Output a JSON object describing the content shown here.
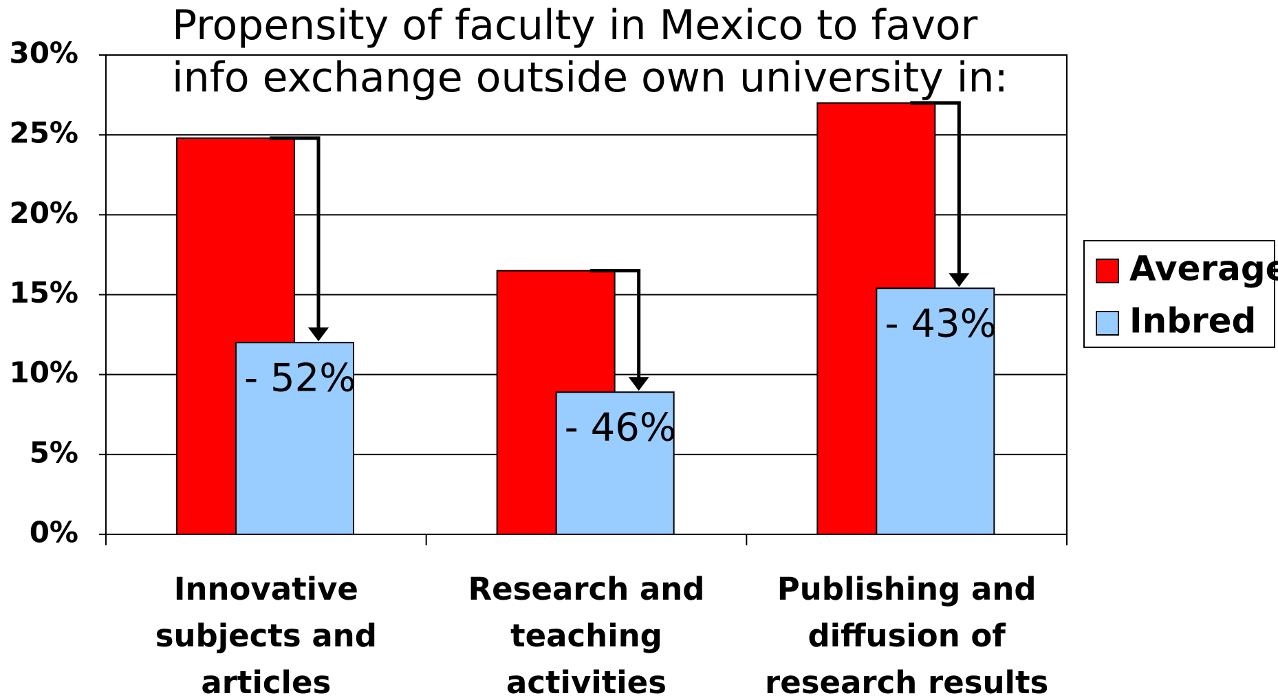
{
  "chart_data": {
    "type": "bar",
    "title": "Propensity of faculty in Mexico to favor info exchange outside own university in:",
    "categories": [
      "Innovative subjects and articles",
      "Research and teaching activities",
      "Publishing and diffusion of research results"
    ],
    "series": [
      {
        "name": "Average",
        "color": "#ff0000",
        "values": [
          24.8,
          16.5,
          27
        ]
      },
      {
        "name": "Inbred",
        "color": "#99ccff",
        "values": [
          12,
          8.9,
          15.4
        ]
      }
    ],
    "annotations": [
      "- 52%",
      "- 46%",
      "- 43%"
    ],
    "ylim": [
      0,
      30
    ],
    "yticks": [
      {
        "value": 0,
        "label": "0%"
      },
      {
        "value": 5,
        "label": "5%"
      },
      {
        "value": 10,
        "label": "10%"
      },
      {
        "value": 15,
        "label": "15%"
      },
      {
        "value": 20,
        "label": "20%"
      },
      {
        "value": 25,
        "label": "25%"
      },
      {
        "value": 30,
        "label": "30%"
      }
    ],
    "grid": true,
    "legend": "right"
  }
}
